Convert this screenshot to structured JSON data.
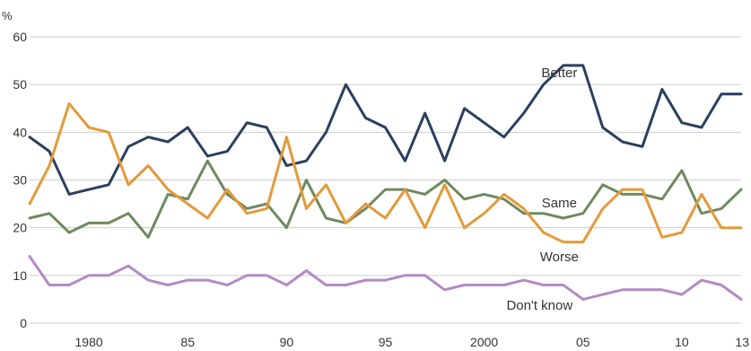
{
  "chart_data": {
    "type": "line",
    "y_unit": "%",
    "ylim": [
      0,
      60
    ],
    "y_ticks": [
      0,
      10,
      20,
      30,
      40,
      50,
      60
    ],
    "xlim": [
      1977,
      2013
    ],
    "x_ticks": [
      {
        "value": 1980,
        "label": "1980"
      },
      {
        "value": 1985,
        "label": "85"
      },
      {
        "value": 1990,
        "label": "90"
      },
      {
        "value": 1995,
        "label": "95"
      },
      {
        "value": 2000,
        "label": "2000"
      },
      {
        "value": 2005,
        "label": "05"
      },
      {
        "value": 2010,
        "label": "10"
      },
      {
        "value": 2013,
        "label": "13"
      }
    ],
    "grid": "horizontal",
    "x": [
      1977,
      1978,
      1979,
      1980,
      1981,
      1982,
      1983,
      1984,
      1985,
      1986,
      1987,
      1988,
      1989,
      1990,
      1991,
      1992,
      1993,
      1994,
      1995,
      1996,
      1997,
      1998,
      1999,
      2000,
      2001,
      2002,
      2003,
      2004,
      2005,
      2006,
      2007,
      2008,
      2009,
      2010,
      2011,
      2012,
      2013
    ],
    "series": [
      {
        "name": "Better",
        "color": "#2b3f5e",
        "label_at": [
          2003.8,
          51.5
        ],
        "values": [
          39,
          36,
          27,
          28,
          29,
          37,
          39,
          38,
          41,
          35,
          36,
          42,
          41,
          33,
          34,
          40,
          50,
          43,
          41,
          34,
          44,
          34,
          45,
          42,
          39,
          44,
          50,
          54,
          54,
          41,
          38,
          37,
          49,
          42,
          41,
          48,
          48
        ]
      },
      {
        "name": "Same",
        "color": "#6e8a5e",
        "label_at": [
          2003.8,
          24.3
        ],
        "values": [
          22,
          23,
          19,
          21,
          21,
          23,
          18,
          27,
          26,
          34,
          27,
          24,
          25,
          20,
          30,
          22,
          21,
          24,
          28,
          28,
          27,
          30,
          26,
          27,
          26,
          23,
          23,
          22,
          23,
          29,
          27,
          27,
          26,
          32,
          23,
          24,
          28
        ]
      },
      {
        "name": "Worse",
        "color": "#e39a3b",
        "label_at": [
          2003.8,
          13.0
        ],
        "values": [
          25,
          33,
          46,
          41,
          40,
          29,
          33,
          28,
          25,
          22,
          28,
          23,
          24,
          39,
          24,
          29,
          21,
          25,
          22,
          28,
          20,
          29,
          20,
          23,
          27,
          24,
          19,
          17,
          17,
          24,
          28,
          28,
          18,
          19,
          27,
          20,
          20
        ]
      },
      {
        "name": "Don't know",
        "color": "#b48ac4",
        "label_at": [
          2002.8,
          2.8
        ],
        "values": [
          14,
          8,
          8,
          10,
          10,
          12,
          9,
          8,
          9,
          9,
          8,
          10,
          10,
          8,
          11,
          8,
          8,
          9,
          9,
          10,
          10,
          7,
          8,
          8,
          8,
          9,
          8,
          8,
          5,
          6,
          7,
          7,
          7,
          6,
          9,
          8,
          5
        ]
      }
    ]
  }
}
